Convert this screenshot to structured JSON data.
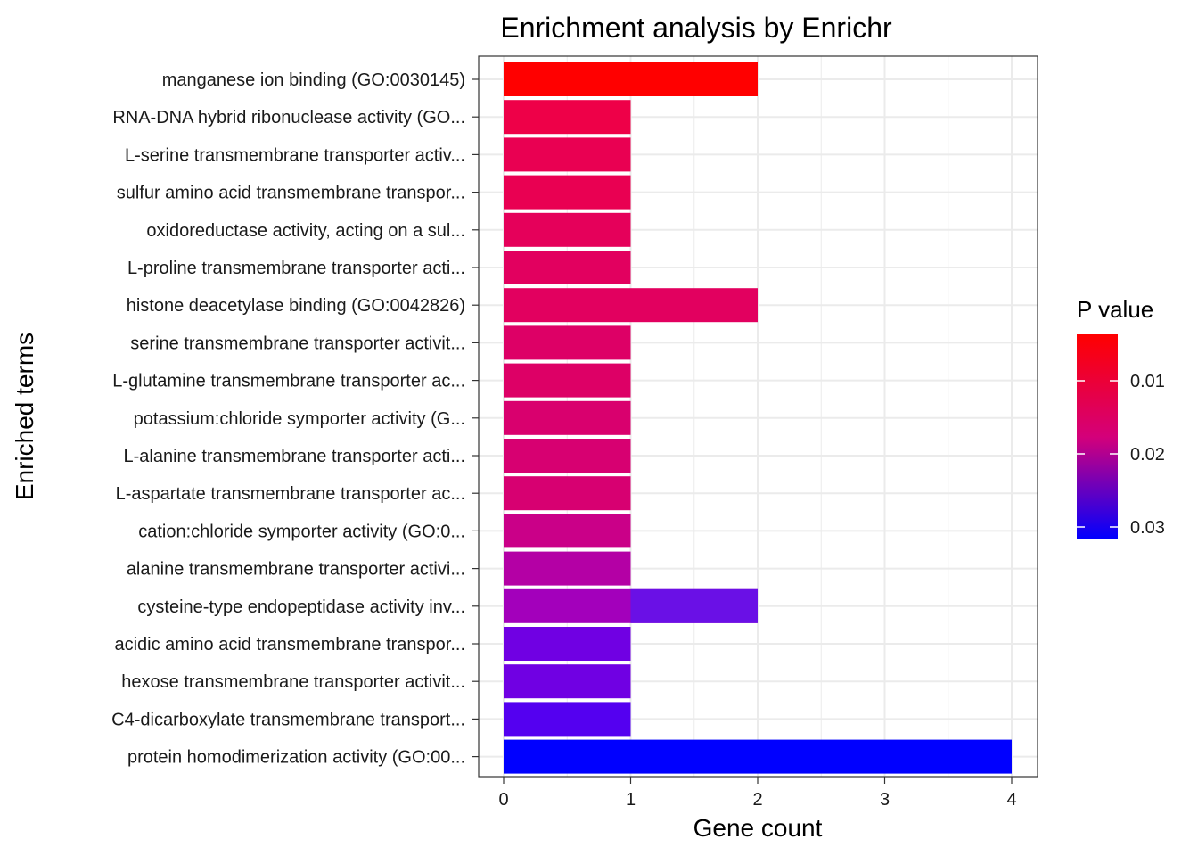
{
  "chart_data": {
    "type": "bar",
    "orientation": "horizontal",
    "title": "Enrichment analysis by Enrichr",
    "xlabel": "Gene count",
    "ylabel": "Enriched terms",
    "xlim": [
      0,
      4
    ],
    "x_ticks": [
      "0",
      "1",
      "2",
      "3",
      "4"
    ],
    "grid": true,
    "categories": [
      "manganese ion binding (GO:0030145)",
      "RNA-DNA hybrid ribonuclease activity (GO...",
      "L-serine transmembrane transporter activ...",
      "sulfur amino acid transmembrane transpor...",
      "oxidoreductase activity, acting on a sul...",
      "L-proline transmembrane transporter acti...",
      "histone deacetylase binding (GO:0042826)",
      "serine transmembrane transporter activit...",
      "L-glutamine transmembrane transporter ac...",
      "potassium:chloride symporter activity (G...",
      "L-alanine transmembrane transporter acti...",
      "L-aspartate transmembrane transporter ac...",
      "cation:chloride symporter activity (GO:0...",
      "alanine transmembrane transporter activi...",
      "cysteine-type endopeptidase activity inv...",
      "acidic amino acid transmembrane transpor...",
      "hexose transmembrane transporter activit...",
      "C4-dicarboxylate transmembrane transport...",
      "protein homodimerization activity (GO:00..."
    ],
    "series": [
      {
        "name": "Gene count",
        "values": [
          2,
          1,
          1,
          1,
          1,
          1,
          2,
          1,
          1,
          1,
          1,
          1,
          1,
          1,
          2,
          1,
          1,
          1,
          4
        ],
        "colors": [
          "#ff0000",
          "#ee0048",
          "#e90052",
          "#e90052",
          "#e5005a",
          "#e2005f",
          "#e2005f",
          "#dd0066",
          "#dd0066",
          "#d9006e",
          "#d70071",
          "#d70071",
          "#ca0088",
          "#b400a5",
          "#a300bb",
          "#7000e3",
          "#7000e3",
          "#5400f0",
          "#0000ff"
        ]
      }
    ],
    "overlay_segments": [
      {
        "category_index": 14,
        "from": 1,
        "to": 2,
        "color": "#6a10e6"
      }
    ],
    "legend": {
      "title": "P value",
      "type": "gradient",
      "placement": "right",
      "labels": [
        "0.01",
        "0.02",
        "0.03"
      ],
      "color_top": "#ff0000",
      "color_bottom": "#0000ff"
    }
  }
}
